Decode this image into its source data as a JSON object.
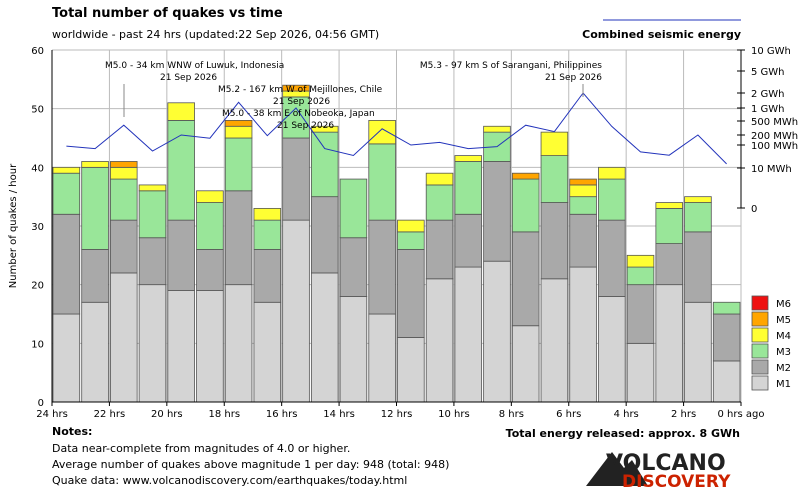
{
  "header": {
    "title": "Total number of quakes vs time",
    "subtitle": "worldwide - past 24 hrs (updated:22 Sep 2026, 04:56 GMT)",
    "energy_legend_label": "Combined seismic energy"
  },
  "chart_data": {
    "type": "bar",
    "stacked": true,
    "xlabel": "",
    "ylabel": "Number of quakes / hour",
    "ylim": [
      0,
      60
    ],
    "y_ticks": [
      0,
      10,
      20,
      30,
      40,
      50,
      60
    ],
    "x_tick_labels": [
      "24 hrs",
      "22 hrs",
      "20 hrs",
      "18 hrs",
      "16 hrs",
      "14 hrs",
      "12 hrs",
      "10 hrs",
      "8 hrs",
      "6 hrs",
      "4 hrs",
      "2 hrs",
      "0 hrs ago"
    ],
    "grid": true,
    "colors": {
      "M1": "#d4d4d4",
      "M2": "#a9a9a9",
      "M3": "#99e699",
      "M4": "#ffff33",
      "M5": "#ffa500",
      "M6": "#ee1111",
      "energy_line": "#2233bb"
    },
    "series": [
      {
        "name": "M1",
        "values": [
          15,
          17,
          22,
          20,
          19,
          19,
          20,
          17,
          31,
          22,
          18,
          15,
          11,
          21,
          23,
          24,
          13,
          21,
          23,
          18,
          10,
          20,
          17,
          7
        ]
      },
      {
        "name": "M2",
        "values": [
          17,
          9,
          9,
          8,
          12,
          7,
          16,
          9,
          14,
          13,
          10,
          16,
          15,
          10,
          9,
          17,
          16,
          13,
          9,
          13,
          10,
          7,
          12,
          8
        ]
      },
      {
        "name": "M3",
        "values": [
          7,
          14,
          7,
          8,
          17,
          8,
          9,
          5,
          7,
          11,
          10,
          13,
          3,
          6,
          9,
          5,
          9,
          8,
          3,
          7,
          3,
          6,
          5,
          2
        ]
      },
      {
        "name": "M4",
        "values": [
          1,
          1,
          2,
          1,
          3,
          2,
          2,
          2,
          1,
          1,
          0,
          4,
          2,
          2,
          1,
          1,
          0,
          4,
          2,
          2,
          2,
          1,
          1,
          0
        ]
      },
      {
        "name": "M5",
        "values": [
          0,
          0,
          1,
          0,
          0,
          0,
          1,
          0,
          1,
          0,
          0,
          0,
          0,
          0,
          0,
          0,
          1,
          0,
          1,
          0,
          0,
          0,
          0,
          0
        ]
      },
      {
        "name": "M6",
        "values": [
          0,
          0,
          0,
          0,
          0,
          0,
          0,
          0,
          0,
          0,
          0,
          0,
          0,
          0,
          0,
          0,
          0,
          0,
          0,
          0,
          0,
          0,
          0,
          0
        ]
      }
    ],
    "energy_axis": {
      "scale": "log",
      "tick_labels": [
        "10 GWh",
        "5 GWh",
        "2 GWh",
        "1 GWh",
        "500 MWh",
        "200 MWh",
        "100 MWh",
        "10 MWh",
        "0"
      ],
      "tick_values_mwh": [
        10000,
        5000,
        2000,
        1000,
        500,
        200,
        100,
        10,
        1
      ]
    },
    "energy_mwh": [
      90,
      70,
      380,
      55,
      200,
      160,
      1300,
      190,
      1000,
      70,
      35,
      300,
      100,
      120,
      70,
      85,
      380,
      250,
      2000,
      350,
      50,
      36,
      200,
      15
    ],
    "annotations": [
      {
        "line1": "M5.0 - 34 km WNW of Luwuk, Indonesia",
        "line2": "21 Sep 2026"
      },
      {
        "line1": "M5.2 - 167 km W of Mejillones, Chile",
        "line2": "21 Sep 2026"
      },
      {
        "line1": "M5.0 - 38 km E of Nobeoka, Japan",
        "line2": "21 Sep 2026"
      },
      {
        "line1": "M5.3 - 97 km S of Sarangani, Philippines",
        "line2": "21 Sep 2026"
      }
    ],
    "legend": {
      "placement": "right-bottom",
      "items": [
        "M6",
        "M5",
        "M4",
        "M3",
        "M2",
        "M1"
      ]
    }
  },
  "footer": {
    "notes_heading": "Notes:",
    "note_lines": [
      "Data near-complete from magnitudes of 4.0 or higher.",
      "Average number of quakes above magnitude 1 per day: 948 (total: 948)",
      "Quake data: www.volcanodiscovery.com/earthquakes/today.html"
    ],
    "total_energy": "Total energy released: approx. 8 GWh",
    "logo_line1": "VOLCANO",
    "logo_line2": "DISCOVERY"
  }
}
